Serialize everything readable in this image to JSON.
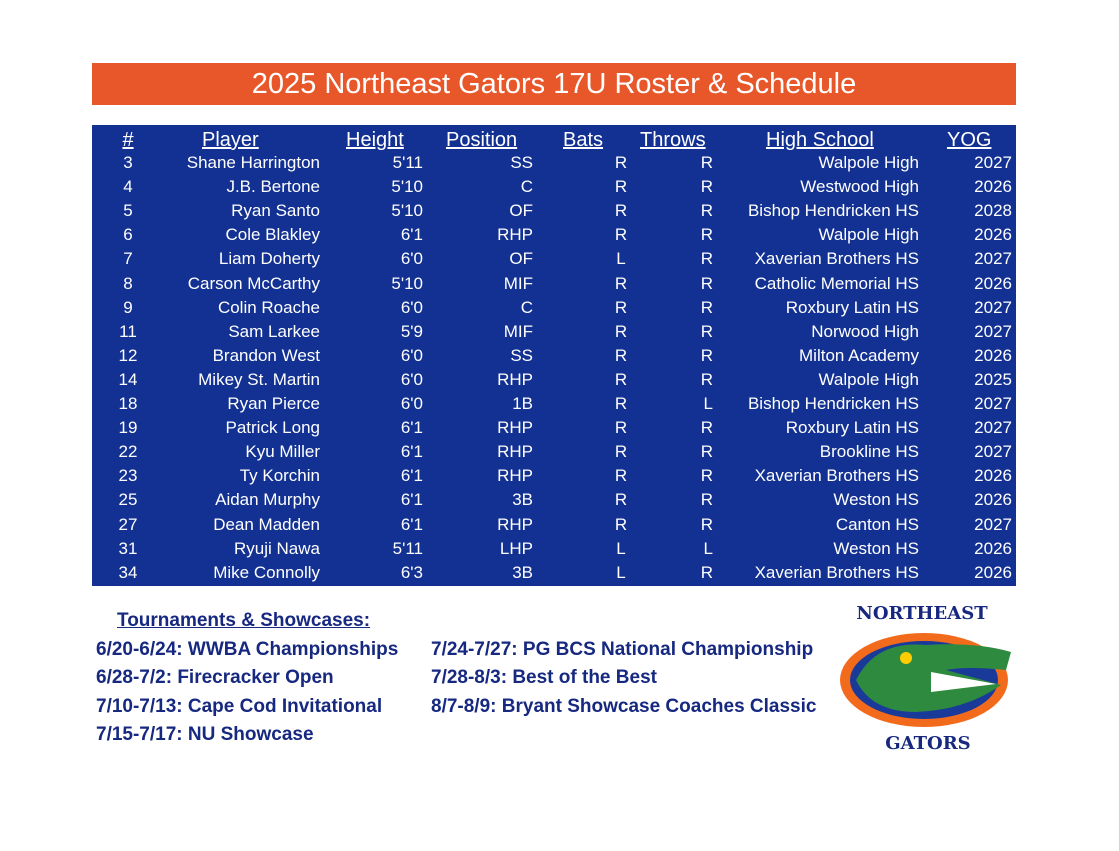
{
  "header": {
    "title": "2025 Northeast Gators 17U Roster & Schedule"
  },
  "table": {
    "columns": [
      "#",
      "Player",
      "Height",
      "Position",
      "Bats",
      "Throws",
      "High School",
      "YOG"
    ],
    "rows": [
      [
        "3",
        "Shane Harrington",
        "5'11",
        "SS",
        "R",
        "R",
        "Walpole High",
        "2027"
      ],
      [
        "4",
        "J.B. Bertone",
        "5'10",
        "C",
        "R",
        "R",
        "Westwood High",
        "2026"
      ],
      [
        "5",
        "Ryan Santo",
        "5'10",
        "OF",
        "R",
        "R",
        "Bishop Hendricken HS",
        "2028"
      ],
      [
        "6",
        "Cole Blakley",
        "6'1",
        "RHP",
        "R",
        "R",
        "Walpole High",
        "2026"
      ],
      [
        "7",
        "Liam Doherty",
        "6'0",
        "OF",
        "L",
        "R",
        "Xaverian Brothers HS",
        "2027"
      ],
      [
        "8",
        "Carson McCarthy",
        "5'10",
        "MIF",
        "R",
        "R",
        "Catholic Memorial HS",
        "2026"
      ],
      [
        "9",
        "Colin Roache",
        "6'0",
        "C",
        "R",
        "R",
        "Roxbury Latin HS",
        "2027"
      ],
      [
        "11",
        "Sam Larkee",
        "5'9",
        "MIF",
        "R",
        "R",
        "Norwood High",
        "2027"
      ],
      [
        "12",
        "Brandon West",
        "6'0",
        "SS",
        "R",
        "R",
        "Milton Academy",
        "2026"
      ],
      [
        "14",
        "Mikey St. Martin",
        "6'0",
        "RHP",
        "R",
        "R",
        "Walpole High",
        "2025"
      ],
      [
        "18",
        "Ryan Pierce",
        "6'0",
        "1B",
        "R",
        "L",
        "Bishop Hendricken HS",
        "2027"
      ],
      [
        "19",
        "Patrick Long",
        "6'1",
        "RHP",
        "R",
        "R",
        "Roxbury Latin HS",
        "2027"
      ],
      [
        "22",
        "Kyu Miller",
        "6'1",
        "RHP",
        "R",
        "R",
        "Brookline HS",
        "2027"
      ],
      [
        "23",
        "Ty Korchin",
        "6'1",
        "RHP",
        "R",
        "R",
        "Xaverian Brothers HS",
        "2026"
      ],
      [
        "25",
        "Aidan Murphy",
        "6'1",
        "3B",
        "R",
        "R",
        "Weston HS",
        "2026"
      ],
      [
        "27",
        "Dean Madden",
        "6'1",
        "RHP",
        "R",
        "R",
        "Canton HS",
        "2027"
      ],
      [
        "31",
        "Ryuji Nawa",
        "5'11",
        "LHP",
        "L",
        "L",
        "Weston HS",
        "2026"
      ],
      [
        "34",
        "Mike Connolly",
        "6'3",
        "3B",
        "L",
        "R",
        "Xaverian Brothers HS",
        "2026"
      ]
    ]
  },
  "schedule": {
    "title": "Tournaments & Showcases:",
    "left": [
      "6/20-6/24: WWBA Championships",
      "6/28-7/2: Firecracker Open",
      "7/10-7/13: Cape Cod Invitational",
      "7/15-7/17: NU Showcase"
    ],
    "right": [
      "7/24-7/27: PG BCS National Championship",
      "7/28-8/3: Best of the Best",
      "8/7-8/9: Bryant Showcase Coaches Classic"
    ]
  },
  "logo": {
    "top": "NORTHEAST",
    "bottom": "GATORS"
  }
}
